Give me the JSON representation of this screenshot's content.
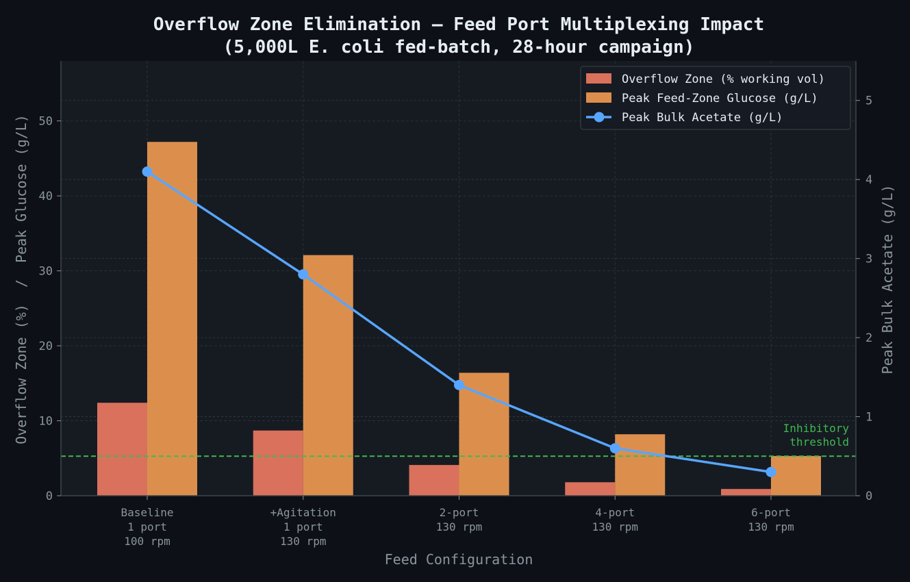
{
  "chart_data": {
    "type": "bar",
    "title": "Overflow Zone Elimination — Feed Port Multiplexing Impact",
    "subtitle": "(5,000L E. coli fed-batch, 28-hour campaign)",
    "xlabel": "Feed Configuration",
    "ylabel_left": "Overflow Zone (%)  /  Peak Glucose (g/L)",
    "ylabel_right": "Peak Bulk Acetate (g/L)",
    "categories": [
      [
        "Baseline",
        "1 port",
        "100 rpm"
      ],
      [
        "+Agitation",
        "1 port",
        "130 rpm"
      ],
      [
        "2-port",
        "130 rpm"
      ],
      [
        "4-port",
        "130 rpm"
      ],
      [
        "6-port",
        "130 rpm"
      ]
    ],
    "series": [
      {
        "name": "Overflow Zone (% working vol)",
        "kind": "bar",
        "axis": "left",
        "color": "#d9715c",
        "values": [
          12.4,
          8.7,
          4.1,
          1.8,
          0.9
        ]
      },
      {
        "name": "Peak Feed-Zone Glucose (g/L)",
        "kind": "bar",
        "axis": "left",
        "color": "#dc8f4d",
        "values": [
          47.2,
          32.1,
          16.4,
          8.2,
          5.3
        ]
      },
      {
        "name": "Peak Bulk Acetate (g/L)",
        "kind": "line",
        "axis": "right",
        "color": "#58a6ff",
        "values": [
          4.1,
          2.8,
          1.4,
          0.6,
          0.3
        ]
      }
    ],
    "ylim_left": [
      0,
      58
    ],
    "ylim_right": [
      0,
      5.5
    ],
    "yticks_left": [
      0,
      10,
      20,
      30,
      40,
      50
    ],
    "yticks_right": [
      0,
      1,
      2,
      3,
      4,
      5
    ],
    "threshold": {
      "value": 0.5,
      "axis": "right",
      "label": [
        "Inhibitory",
        "threshold"
      ],
      "color": "#3fb950"
    },
    "legend_position": "top-right",
    "grid": true
  }
}
